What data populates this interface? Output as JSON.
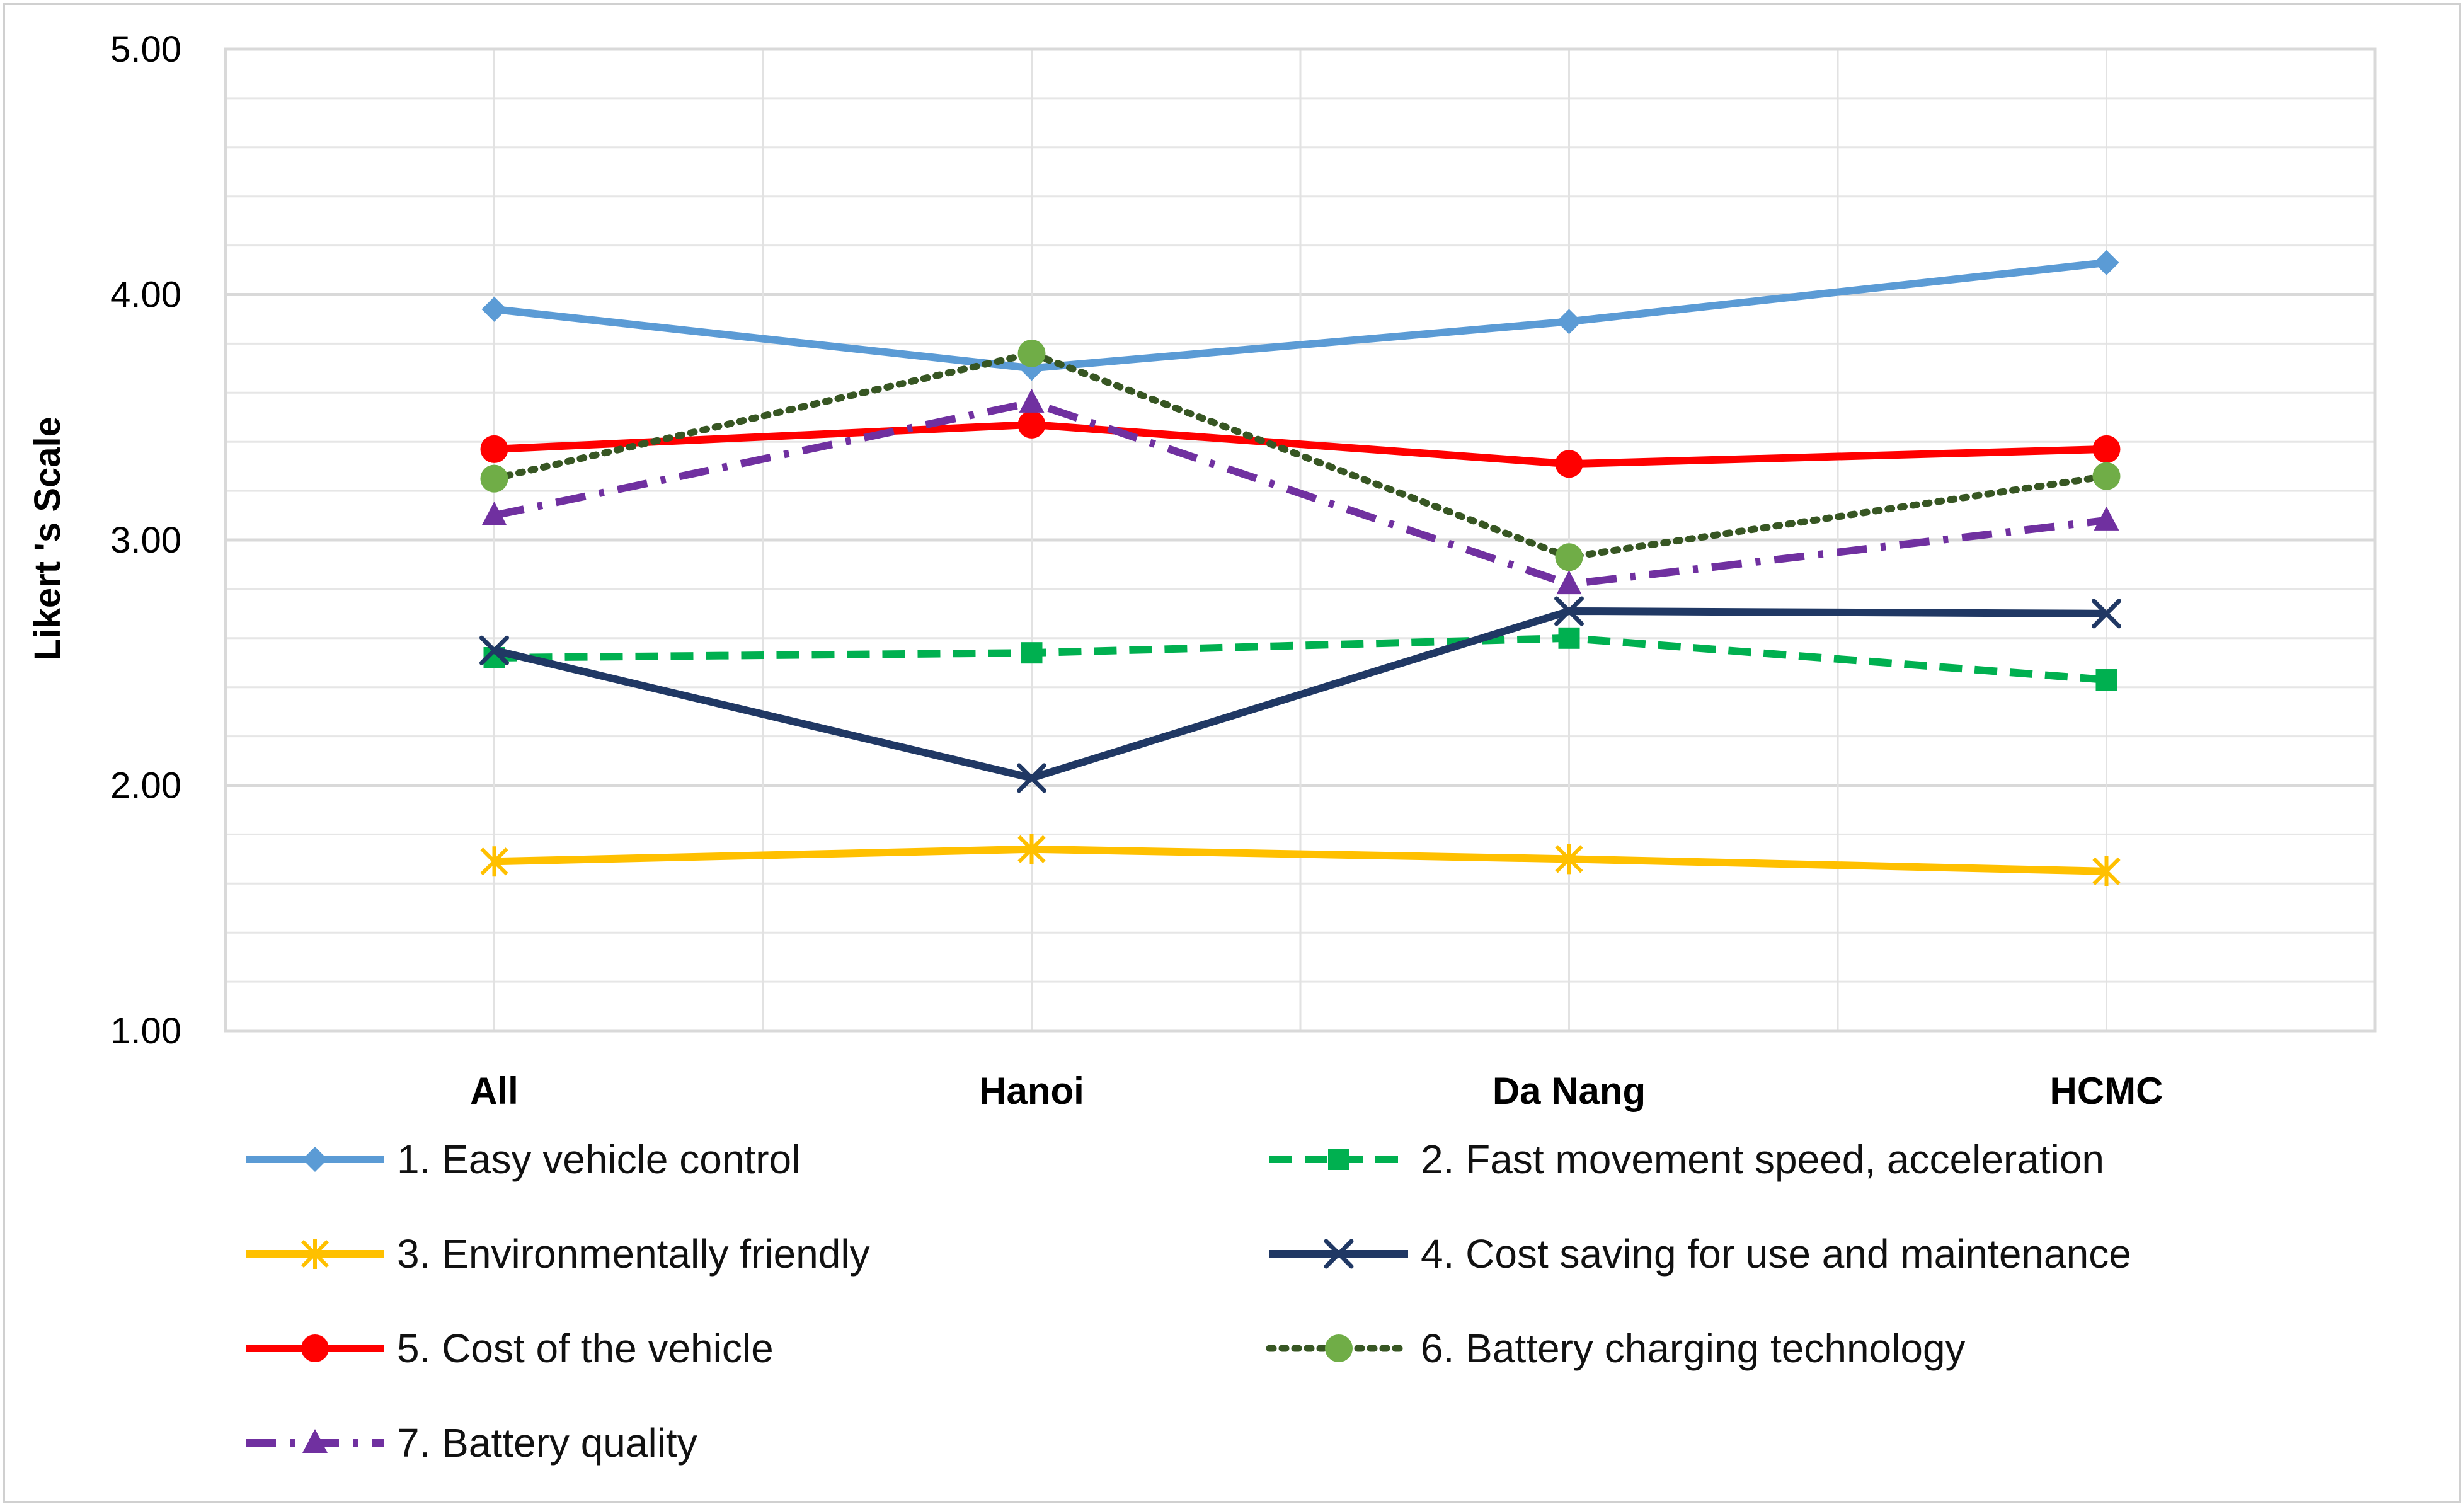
{
  "chart_data": {
    "type": "line",
    "title": "",
    "xlabel": "",
    "ylabel": "Likert 's Scale",
    "ylim": [
      1.0,
      5.0
    ],
    "ytick_values": [
      1.0,
      2.0,
      3.0,
      4.0,
      5.0
    ],
    "ytick_labels": [
      "1.00",
      "2.00",
      "3.00",
      "4.00",
      "5.00"
    ],
    "categories": [
      "All",
      "Hanoi",
      "Da Nang",
      "HCMC"
    ],
    "grid": true,
    "legend_position": "bottom",
    "series": [
      {
        "name": "1. Easy vehicle control",
        "values": [
          3.94,
          3.7,
          3.89,
          4.13
        ],
        "color": "#5B9BD5",
        "marker": "diamond",
        "dash": "solid"
      },
      {
        "name": "2. Fast movement speed,  acceleration",
        "values": [
          2.52,
          2.54,
          2.6,
          2.43
        ],
        "color": "#00B050",
        "marker": "square",
        "dash": "dashed"
      },
      {
        "name": "3. Environmentally friendly",
        "values": [
          1.69,
          1.74,
          1.7,
          1.65
        ],
        "color": "#FFC000",
        "marker": "asterisk",
        "dash": "solid"
      },
      {
        "name": "4. Cost saving for use and maintenance",
        "values": [
          2.55,
          2.03,
          2.71,
          2.7
        ],
        "color": "#203864",
        "marker": "x",
        "dash": "solid"
      },
      {
        "name": "5. Cost of the vehicle",
        "values": [
          3.37,
          3.47,
          3.31,
          3.37
        ],
        "color": "#FF0000",
        "marker": "circle",
        "dash": "solid"
      },
      {
        "name": "6. Battery charging technology",
        "values": [
          3.25,
          3.76,
          2.93,
          3.26
        ],
        "color": "#70AD47",
        "line_color": "#375623",
        "marker": "circle",
        "dash": "dotted"
      },
      {
        "name": "7. Battery quality",
        "values": [
          3.1,
          3.56,
          2.82,
          3.08
        ],
        "color": "#7030A0",
        "marker": "triangle",
        "dash": "dashdot"
      }
    ]
  }
}
